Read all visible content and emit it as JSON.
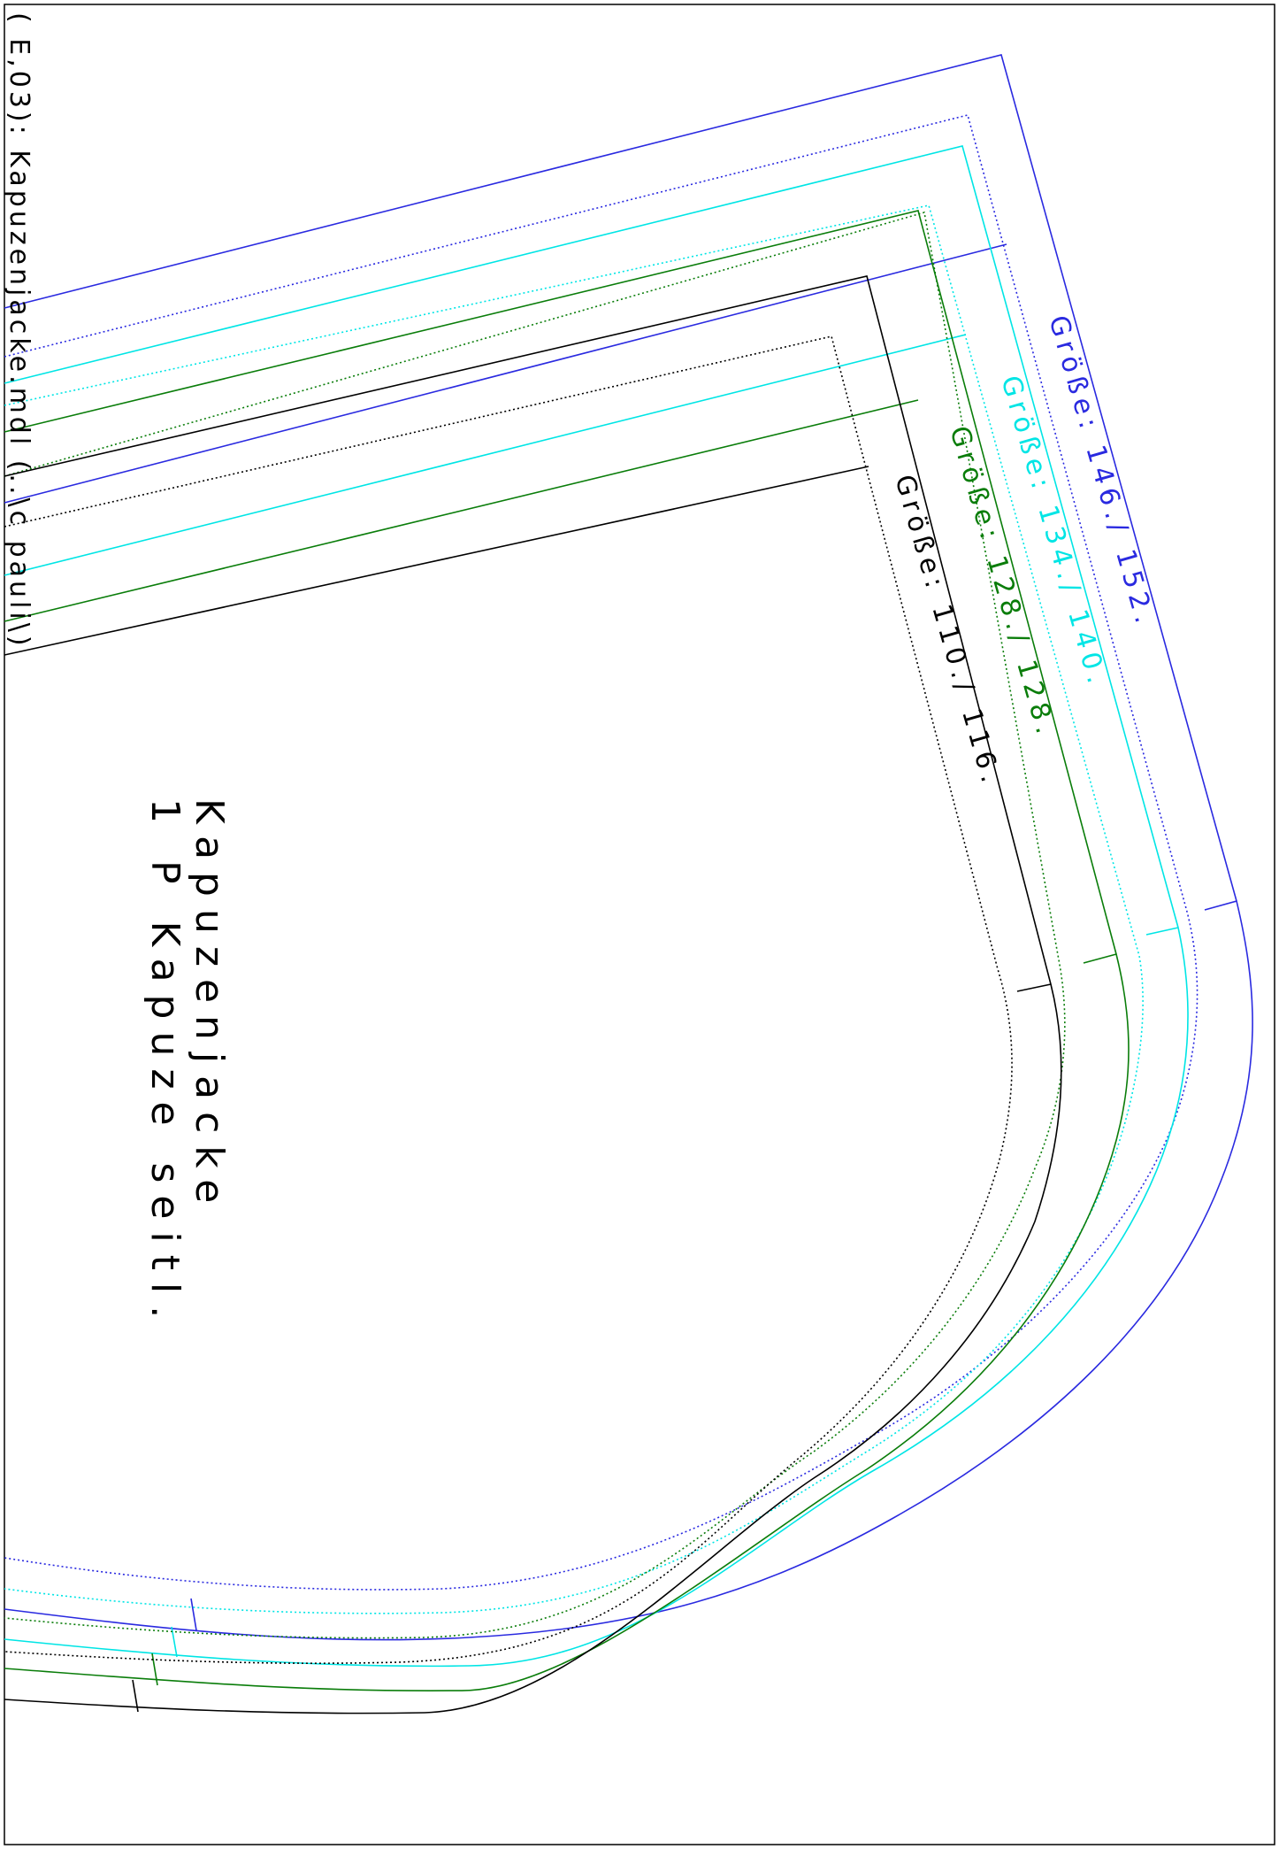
{
  "header": {
    "file_label": "( E,03): Kapuzenjacke.mdl (..\\c pauli\\)"
  },
  "piece": {
    "title": "Kapuzenjacke",
    "subtitle": "1 P Kapuze seitl."
  },
  "sizes": [
    {
      "label": "Größe:  146./  152.",
      "color": "#2a2ae0"
    },
    {
      "label": "Größe:  134./  140.",
      "color": "#00e5e5"
    },
    {
      "label": "Größe:  128./  128.",
      "color": "#0a7d0a"
    },
    {
      "label": "Größe:  110./  116.",
      "color": "#000000"
    }
  ]
}
